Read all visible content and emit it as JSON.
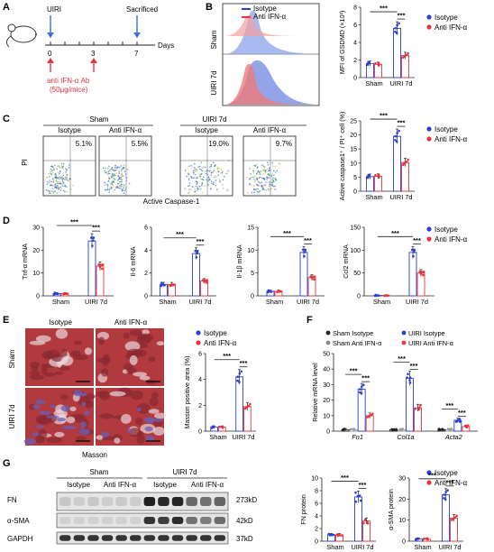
{
  "panels": {
    "A": {
      "letter": "A",
      "top_labels": [
        "UIRI",
        "Sacrificed"
      ],
      "ticks": [
        "0",
        "3",
        "7"
      ],
      "axis_unit": "Days",
      "treatment": [
        "anti IFN-α Ab",
        "(50μg/mice)"
      ]
    },
    "B": {
      "letter": "B",
      "histogram_legend": [
        "Isotype",
        "Anti IFN-α"
      ],
      "row_labels": [
        "Sham",
        "UIRI 7d"
      ]
    },
    "C": {
      "letter": "C",
      "group_headers": [
        "Sham",
        "UIRI 7d"
      ],
      "sub_headers": [
        "Isotype",
        "Anti IFN-α",
        "Isotype",
        "Anti IFN-α"
      ],
      "percents": [
        "5.1%",
        "5.5%",
        "19.0%",
        "9.7%"
      ],
      "y_label": "PI",
      "x_label": "Active Caspase-1"
    },
    "D": {
      "letter": "D"
    },
    "E": {
      "letter": "E",
      "col_headers": [
        "Isotype",
        "Anti IFN-α"
      ],
      "row_labels": [
        "Sham",
        "UIRI 7d"
      ],
      "stain": "Masson"
    },
    "F": {
      "letter": "F"
    },
    "G": {
      "letter": "G",
      "group_headers": [
        "Sham",
        "UIRI 7d"
      ],
      "sub_headers": [
        "Isotype",
        "Anti IFN-α",
        "Isotype",
        "Anti IFN-α"
      ],
      "bands": [
        "FN",
        "α-SMA",
        "GAPDH"
      ],
      "sizes": [
        "273kD",
        "42kD",
        "37kD"
      ]
    }
  },
  "colors": {
    "isotype": "#2b3fd6",
    "anti": "#e8343c",
    "blue_fill": "#6f86e0",
    "red_fill": "#f08a88"
  },
  "chart_data": [
    {
      "id": "B-bar",
      "type": "bar",
      "ylabel": "MFI of GSDMD (×10³)",
      "categories": [
        "Sham",
        "UIRI 7d"
      ],
      "ylim": [
        0,
        8
      ],
      "yticks": [
        0,
        2,
        4,
        6,
        8
      ],
      "series": [
        {
          "name": "Isotype",
          "values": [
            1.6,
            5.6
          ]
        },
        {
          "name": "Anti IFN-α",
          "values": [
            1.5,
            2.5
          ]
        }
      ],
      "sig": [
        "***",
        "***"
      ]
    },
    {
      "id": "C-bar",
      "type": "bar",
      "ylabel": "Active caspase1⁺ / PI⁺ cell (%)",
      "categories": [
        "Sham",
        "UIRI 7d"
      ],
      "ylim": [
        0,
        25
      ],
      "yticks": [
        0,
        5,
        10,
        15,
        20,
        25
      ],
      "series": [
        {
          "name": "Isotype",
          "values": [
            5.2,
            19.5
          ]
        },
        {
          "name": "Anti IFN-α",
          "values": [
            5.3,
            10.2
          ]
        }
      ],
      "sig": [
        "***",
        "***"
      ]
    },
    {
      "id": "D1",
      "type": "bar",
      "ylabel": "Tnf-α mRNA",
      "categories": [
        "Sham",
        "UIRI 7d"
      ],
      "ylim": [
        0,
        30
      ],
      "yticks": [
        0,
        10,
        20,
        30
      ],
      "series": [
        {
          "name": "Isotype",
          "values": [
            1,
            24
          ]
        },
        {
          "name": "Anti IFN-α",
          "values": [
            1,
            13
          ]
        }
      ],
      "sig": [
        "***",
        "***"
      ]
    },
    {
      "id": "D2",
      "type": "bar",
      "ylabel": "Il-6 mRNA",
      "categories": [
        "Sham",
        "UIRI 7d"
      ],
      "ylim": [
        0,
        6
      ],
      "yticks": [
        0,
        2,
        4,
        6
      ],
      "series": [
        {
          "name": "Isotype",
          "values": [
            1,
            3.7
          ]
        },
        {
          "name": "Anti IFN-α",
          "values": [
            1,
            1.3
          ]
        }
      ],
      "sig": [
        "***",
        "***"
      ]
    },
    {
      "id": "D3",
      "type": "bar",
      "ylabel": "Il-1β mRNA",
      "categories": [
        "Sham",
        "UIRI 7d"
      ],
      "ylim": [
        0,
        15
      ],
      "yticks": [
        0,
        5,
        10,
        15
      ],
      "series": [
        {
          "name": "Isotype",
          "values": [
            1,
            9.5
          ]
        },
        {
          "name": "Anti IFN-α",
          "values": [
            1,
            4
          ]
        }
      ],
      "sig": [
        "***",
        "***"
      ]
    },
    {
      "id": "D4",
      "type": "bar",
      "ylabel": "Ccl2 mRNA",
      "categories": [
        "Sham",
        "UIRI 7d"
      ],
      "ylim": [
        0,
        150
      ],
      "yticks": [
        0,
        50,
        100,
        150
      ],
      "series": [
        {
          "name": "Isotype",
          "values": [
            1,
            95
          ]
        },
        {
          "name": "Anti IFN-α",
          "values": [
            1,
            50
          ]
        }
      ],
      "sig": [
        "***",
        "***"
      ]
    },
    {
      "id": "E-bar",
      "type": "bar",
      "ylabel": "Masson positive area (%)",
      "categories": [
        "Sham",
        "UIRI 7d"
      ],
      "ylim": [
        0,
        6
      ],
      "yticks": [
        0,
        2,
        4,
        6
      ],
      "series": [
        {
          "name": "Isotype",
          "values": [
            0.3,
            4.2
          ]
        },
        {
          "name": "Anti IFN-α",
          "values": [
            0.3,
            1.9
          ]
        }
      ],
      "sig": [
        "***",
        "***"
      ]
    },
    {
      "id": "F-bar",
      "type": "bar",
      "ylabel": "Relative mRNA level",
      "categories": [
        "Fn1",
        "Col1a",
        "Acta2"
      ],
      "ylim": [
        0,
        50
      ],
      "yticks": [
        0,
        10,
        20,
        30,
        40,
        50
      ],
      "series": [
        {
          "name": "Sham Isotype",
          "values": [
            1,
            1,
            1
          ]
        },
        {
          "name": "Sham Anti IFN-α",
          "values": [
            1,
            1,
            1
          ]
        },
        {
          "name": "UIRI Isotype",
          "values": [
            27,
            34,
            7
          ]
        },
        {
          "name": "UIRI Anti IFN-α",
          "values": [
            10,
            15,
            3
          ]
        }
      ],
      "sig_pairs": [
        "***",
        "***",
        "***",
        "***",
        "***",
        "***"
      ]
    },
    {
      "id": "G-FN",
      "type": "bar",
      "ylabel": "FN protein",
      "categories": [
        "Sham",
        "UIRI 7d"
      ],
      "ylim": [
        0,
        10
      ],
      "yticks": [
        0,
        2,
        4,
        6,
        8,
        10
      ],
      "series": [
        {
          "name": "Isotype",
          "values": [
            1,
            7
          ]
        },
        {
          "name": "Anti IFN-α",
          "values": [
            1,
            3.2
          ]
        }
      ],
      "sig": [
        "***",
        "***"
      ]
    },
    {
      "id": "G-SMA",
      "type": "bar",
      "ylabel": "α-SMA protein",
      "categories": [
        "Sham",
        "UIRI 7d"
      ],
      "ylim": [
        0,
        30
      ],
      "yticks": [
        0,
        10,
        20,
        30
      ],
      "series": [
        {
          "name": "Isotype",
          "values": [
            1,
            22
          ]
        },
        {
          "name": "Anti IFN-α",
          "values": [
            1,
            11
          ]
        }
      ],
      "sig": [
        "***",
        "***"
      ]
    }
  ]
}
